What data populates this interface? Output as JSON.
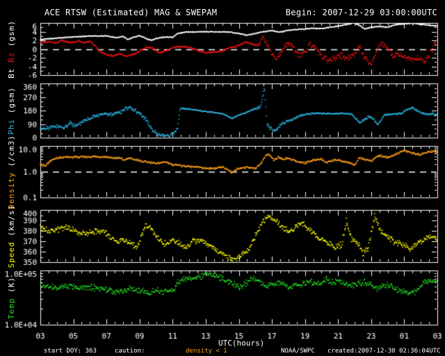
{
  "header": {
    "title": "ACE RTSW (Estimated) MAG & SWEPAM",
    "begin_label": "Begin: 2007-12-29 03:00:00UTC"
  },
  "footer": {
    "start_doy": "start DOY: 363",
    "caution": "caution:",
    "caution_value": "density < 1",
    "caution_color": "#ffa018",
    "agency": "NOAA/SWPC",
    "created": "created:2007-12-30 02:36:04UTC"
  },
  "x_axis": {
    "label": "UTC(hours)",
    "start_hour": 3,
    "end_hour": 27,
    "major_tick_hours": 2,
    "minor_tick_hours": 0.5,
    "tick_labels": [
      "03",
      "05",
      "07",
      "09",
      "11",
      "13",
      "15",
      "17",
      "19",
      "21",
      "23",
      "01",
      "03"
    ]
  },
  "chart_data": [
    {
      "type": "scatter",
      "id": "mag",
      "scale": "linear",
      "ymin": -6,
      "ymax": 6,
      "ytick_major": 2,
      "ytick_minor": 1,
      "dashed_line_y": 0,
      "yticks": [
        {
          "v": 6,
          "label": "6"
        },
        {
          "v": 4,
          "label": "4"
        },
        {
          "v": 2,
          "label": "2"
        },
        {
          "v": 0,
          "label": "0"
        },
        {
          "v": -2,
          "label": "-2"
        },
        {
          "v": -4,
          "label": "-4"
        },
        {
          "v": -6,
          "label": "-6"
        }
      ],
      "ylabel_parts": [
        {
          "text": "Bt",
          "color": "#ffffff"
        },
        {
          "text": "Bz",
          "color": "#ee1111"
        },
        {
          "text": "(gsm)",
          "color": "#ffffff"
        }
      ],
      "series": [
        {
          "name": "Bt",
          "color": "#ffffff",
          "x": [
            3,
            4,
            5,
            6,
            7,
            7.6,
            8,
            8.3,
            8.7,
            9,
            9.4,
            9.7,
            10,
            10.5,
            11,
            11.3,
            11.8,
            12.5,
            13.5,
            14.5,
            15,
            15.5,
            16,
            16.5,
            17,
            17.5,
            18,
            18.5,
            19,
            19.5,
            20,
            20.5,
            21,
            21.5,
            22,
            22.3,
            22.6,
            23,
            23.5,
            24,
            24.5,
            25,
            25.5,
            26,
            26.5,
            27
          ],
          "y": [
            2.2,
            2.5,
            2.8,
            3.0,
            3.0,
            2.6,
            2.9,
            2.2,
            2.8,
            3.1,
            2.4,
            2.0,
            2.4,
            2.8,
            2.7,
            3.6,
            3.9,
            4.0,
            4.0,
            3.9,
            3.6,
            3.2,
            3.6,
            4.0,
            4.2,
            3.9,
            4.3,
            4.5,
            4.6,
            4.8,
            4.7,
            5.0,
            5.3,
            5.7,
            5.9,
            5.5,
            4.6,
            5.0,
            5.2,
            5.0,
            5.6,
            5.8,
            5.9,
            5.7,
            5.5,
            5.3
          ],
          "noise_x": [
            3,
            27
          ],
          "noise_amp": [
            0.12,
            0.12
          ]
        },
        {
          "name": "Bz",
          "color": "#ee1111",
          "x": [
            3,
            3.5,
            4,
            4.3,
            4.6,
            5,
            5.3,
            5.6,
            6,
            6.3,
            6.6,
            7,
            7.4,
            7.8,
            8.2,
            8.6,
            9,
            9.4,
            9.8,
            10.2,
            10.6,
            11,
            11.5,
            12,
            12.5,
            13,
            13.5,
            14,
            14.5,
            15,
            15.4,
            15.8,
            16.2,
            16.45,
            16.6,
            16.8,
            17,
            17.3,
            17.6,
            18,
            18.3,
            18.6,
            19,
            19.3,
            19.6,
            20,
            20.4,
            20.8,
            21.2,
            21.6,
            22,
            22.3,
            22.6,
            23,
            23.3,
            23.6,
            24,
            24.3,
            24.6,
            25,
            25.4,
            25.8,
            26.2,
            26.5,
            26.8,
            27
          ],
          "y": [
            1.5,
            1.7,
            1.4,
            2.0,
            1.6,
            1.5,
            1.9,
            1.4,
            1.8,
            0.8,
            -0.6,
            -1.3,
            -1.6,
            -1.1,
            -1.7,
            -1.3,
            -0.4,
            0.4,
            0.2,
            -0.9,
            -0.4,
            0.3,
            0.6,
            0.4,
            -0.3,
            -0.8,
            -0.7,
            -0.4,
            0.3,
            0.8,
            1.6,
            1.1,
            0.9,
            3.0,
            1.5,
            0.5,
            -1.0,
            -2.2,
            -0.5,
            1.5,
            0.3,
            -1.4,
            -0.5,
            1.2,
            0.2,
            -1.8,
            -2.6,
            -2.0,
            -1.4,
            -2.2,
            -1.2,
            0.8,
            -1.9,
            -3.6,
            -1.0,
            1.4,
            0.2,
            -1.6,
            -1.2,
            -1.8,
            -2.4,
            -2.1,
            -3.0,
            -1.5,
            0.8,
            1.8
          ],
          "noise_x": [
            3,
            16,
            16.8,
            17.5,
            27
          ],
          "noise_amp": [
            0.22,
            0.25,
            0.5,
            0.8,
            0.8
          ]
        }
      ]
    },
    {
      "type": "scatter",
      "id": "phi",
      "scale": "linear",
      "ymin": 0,
      "ymax": 360,
      "ytick_major": 90,
      "ytick_minor": 30,
      "dashed_line_y": null,
      "yticks": [
        {
          "v": 360,
          "label": "360"
        },
        {
          "v": 270,
          "label": "270"
        },
        {
          "v": 180,
          "label": "180"
        },
        {
          "v": 90,
          "label": "90"
        },
        {
          "v": 0,
          "label": "0"
        }
      ],
      "ylabel_parts": [
        {
          "text": "Phi",
          "color": "#2bb8e8"
        },
        {
          "text": "(gsm)",
          "color": "#ffffff"
        }
      ],
      "series": [
        {
          "name": "Phi",
          "color": "#2bb8e8",
          "x": [
            3,
            3.6,
            4,
            4.4,
            4.8,
            5.2,
            5.6,
            6,
            6.5,
            7,
            7.4,
            7.8,
            8.2,
            8.6,
            9,
            9.4,
            9.8,
            10.2,
            10.6,
            11,
            11.3,
            11.45,
            12,
            12.7,
            13.4,
            14,
            14.6,
            15,
            15.4,
            16,
            16.3,
            16.55,
            16.7,
            16.9,
            17.2,
            17.6,
            18,
            18.4,
            18.8,
            19.2,
            19.6,
            20,
            20.6,
            21.2,
            21.8,
            22.3,
            22.7,
            23,
            23.4,
            23.8,
            24.3,
            24.8,
            25.2,
            25.5,
            25.9,
            26.3,
            26.7,
            27
          ],
          "y": [
            58,
            62,
            80,
            60,
            95,
            75,
            110,
            130,
            150,
            160,
            150,
            170,
            200,
            190,
            160,
            120,
            45,
            15,
            12,
            25,
            60,
            195,
            190,
            178,
            168,
            160,
            128,
            150,
            165,
            195,
            200,
            335,
            90,
            60,
            50,
            95,
            110,
            130,
            150,
            158,
            162,
            160,
            158,
            162,
            158,
            100,
            130,
            140,
            85,
            150,
            158,
            160,
            190,
            200,
            170,
            155,
            160,
            150
          ],
          "noise_x": [
            3,
            10.8,
            11.4,
            16,
            16.5,
            17.5,
            18.5,
            22,
            22.6,
            23.6,
            25,
            27
          ],
          "noise_amp": [
            16,
            16,
            5,
            5,
            20,
            16,
            8,
            6,
            16,
            6,
            8,
            9
          ]
        }
      ]
    },
    {
      "type": "scatter",
      "id": "density",
      "scale": "log",
      "ymin": 0.1,
      "ymax": 10,
      "dashed_line_y": 1.0,
      "yticks": [
        {
          "v": 10,
          "label": "10.0"
        },
        {
          "v": 1,
          "label": "1.0"
        },
        {
          "v": 0.1,
          "label": "0.1"
        }
      ],
      "ylabel_parts": [
        {
          "text": "Density",
          "color": "#ffa018"
        },
        {
          "text": "(/cm3)",
          "color": "#ffffff"
        }
      ],
      "series": [
        {
          "name": "Density",
          "color": "#ffa018",
          "x": [
            3,
            3.3,
            3.6,
            4,
            4.5,
            5,
            5.5,
            6,
            6.5,
            7,
            7.4,
            7.7,
            8,
            8.4,
            8.8,
            9.2,
            9.6,
            10,
            10.5,
            11,
            11.5,
            12,
            12.5,
            13,
            13.5,
            14,
            14.3,
            14.6,
            15,
            15.5,
            16,
            16.4,
            16.7,
            16.9,
            17.1,
            17.4,
            17.7,
            18,
            18.5,
            19,
            19.5,
            20,
            20.3,
            20.6,
            21,
            21.5,
            22,
            22.3,
            22.6,
            23,
            23.3,
            23.6,
            24,
            24.3,
            24.7,
            25,
            25.3,
            25.6,
            26,
            26.3,
            26.6,
            27
          ],
          "y": [
            2.0,
            1.6,
            2.6,
            3.4,
            3.8,
            3.7,
            3.9,
            3.8,
            3.9,
            3.7,
            3.3,
            3.6,
            3.0,
            3.3,
            2.9,
            2.6,
            2.3,
            2.1,
            2.4,
            1.9,
            1.7,
            1.6,
            1.5,
            1.4,
            1.35,
            1.5,
            1.2,
            0.95,
            1.3,
            1.5,
            1.35,
            2.2,
            4.8,
            4.0,
            3.0,
            3.6,
            3.1,
            3.3,
            2.5,
            2.2,
            2.8,
            3.1,
            2.2,
            2.7,
            2.9,
            2.4,
            1.8,
            3.4,
            3.0,
            2.6,
            3.8,
            4.3,
            3.6,
            4.1,
            5.6,
            6.6,
            5.8,
            5.1,
            4.6,
            5.6,
            6.2,
            5.6
          ],
          "noise_x": [
            3,
            27
          ],
          "noise_amp": [
            0.05,
            0.05
          ]
        }
      ]
    },
    {
      "type": "scatter",
      "id": "speed",
      "scale": "linear",
      "ymin": 350,
      "ymax": 400,
      "ytick_major": 10,
      "ytick_minor": 5,
      "dashed_line_y": null,
      "yticks": [
        {
          "v": 400,
          "label": "400"
        },
        {
          "v": 390,
          "label": "390"
        },
        {
          "v": 380,
          "label": "380"
        },
        {
          "v": 370,
          "label": "370"
        },
        {
          "v": 360,
          "label": "360"
        },
        {
          "v": 350,
          "label": "350"
        }
      ],
      "ylabel_parts": [
        {
          "text": "Speed",
          "color": "#ffff00"
        },
        {
          "text": "(km/s)",
          "color": "#ffffff"
        }
      ],
      "series": [
        {
          "name": "Speed",
          "color": "#ffff00",
          "x": [
            3,
            3.5,
            4,
            4.5,
            5,
            5.5,
            6,
            6.5,
            7,
            7.3,
            7.6,
            8,
            8.4,
            8.8,
            9,
            9.4,
            9.7,
            10,
            10.3,
            10.7,
            11,
            11.4,
            11.8,
            12.2,
            12.6,
            13,
            13.4,
            13.7,
            14,
            14.4,
            14.8,
            15.2,
            15.6,
            16,
            16.4,
            16.8,
            17.2,
            17.6,
            18,
            18.4,
            18.8,
            19.2,
            19.6,
            20,
            20.4,
            20.8,
            21.2,
            21.5,
            21.8,
            22.2,
            22.5,
            22.8,
            23.2,
            23.5,
            23.8,
            24.2,
            24.6,
            25,
            25.4,
            25.8,
            26.2,
            26.6,
            27
          ],
          "y": [
            384,
            380,
            381,
            383,
            381,
            377,
            379,
            380,
            378,
            372,
            369,
            371,
            368,
            364,
            370,
            386,
            382,
            374,
            370,
            367,
            371,
            368,
            363,
            370,
            372,
            368,
            365,
            360,
            358,
            354,
            352,
            357,
            362,
            375,
            388,
            395,
            390,
            384,
            380,
            383,
            388,
            382,
            376,
            372,
            368,
            364,
            366,
            389,
            372,
            368,
            358,
            362,
            394,
            382,
            376,
            372,
            368,
            366,
            363,
            368,
            372,
            374,
            373
          ],
          "noise_x": [
            3,
            27
          ],
          "noise_amp": [
            3.5,
            3.5
          ]
        }
      ]
    },
    {
      "type": "scatter",
      "id": "temp",
      "scale": "log",
      "ymin": 10000,
      "ymax": 100000,
      "dashed_line_y": null,
      "yticks": [
        {
          "v": 100000,
          "label": "1.0E+05"
        },
        {
          "v": 10000,
          "label": "1.0E+04"
        }
      ],
      "ylabel_parts": [
        {
          "text": "Temp",
          "color": "#22dd22"
        },
        {
          "text": "(K)",
          "color": "#ffffff"
        }
      ],
      "series": [
        {
          "name": "Temp",
          "color": "#22dd22",
          "x": [
            3,
            3.5,
            4,
            4.5,
            5,
            5.5,
            6,
            6.5,
            7,
            7.5,
            8,
            8.5,
            9,
            9.5,
            10,
            10.5,
            11,
            11.5,
            12,
            12.5,
            13,
            13.3,
            13.6,
            14,
            14.5,
            15,
            15.3,
            15.6,
            16,
            16.3,
            16.6,
            17,
            17.4,
            17.8,
            18.2,
            18.6,
            19,
            19.4,
            19.8,
            20.2,
            20.6,
            21,
            21.4,
            21.8,
            22.2,
            22.6,
            23,
            23.4,
            23.8,
            24.2,
            24.6,
            25,
            25.4,
            25.8,
            26.2,
            26.6,
            27
          ],
          "y": [
            55000,
            50000,
            48000,
            52000,
            50000,
            48000,
            50000,
            47000,
            44000,
            40000,
            42000,
            45000,
            43000,
            38000,
            42000,
            40000,
            43000,
            65000,
            70000,
            75000,
            85000,
            90000,
            80000,
            70000,
            60000,
            50000,
            55000,
            65000,
            70000,
            60000,
            52000,
            55000,
            60000,
            54000,
            50000,
            53000,
            56000,
            62000,
            56000,
            68000,
            60000,
            65000,
            58000,
            52000,
            56000,
            60000,
            52000,
            46000,
            54000,
            50000,
            44000,
            40000,
            38000,
            42000,
            60000,
            64000,
            62000
          ],
          "noise_x": [
            3,
            27
          ],
          "noise_amp": [
            0.07,
            0.07
          ]
        }
      ]
    }
  ]
}
